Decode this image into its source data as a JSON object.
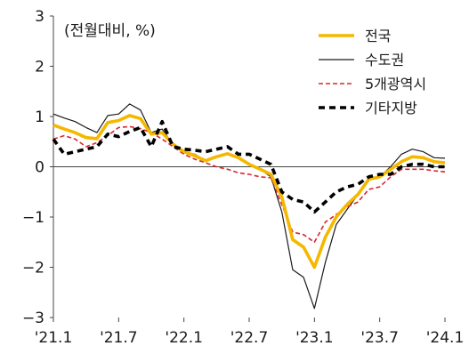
{
  "chart_data": {
    "type": "line",
    "unit_label": "(전월대비, %)",
    "ylim": [
      -3,
      3
    ],
    "y_ticks": [
      3,
      2,
      1,
      0,
      -1,
      -2,
      -3
    ],
    "x_ticks": [
      "'21.1",
      "'21.7",
      "'22.1",
      "'22.7",
      "'23.1",
      "'23.7",
      "'24.1"
    ],
    "x_start": "2021-01",
    "legend_position": "top-right",
    "grid": false,
    "series": [
      {
        "name": "전국",
        "color": "#F5B800",
        "style": "solid-thick",
        "values": [
          0.83,
          0.75,
          0.68,
          0.58,
          0.56,
          0.88,
          0.92,
          1.02,
          0.96,
          0.65,
          0.68,
          0.45,
          0.3,
          0.22,
          0.12,
          0.2,
          0.26,
          0.18,
          0.05,
          -0.05,
          -0.15,
          -0.6,
          -1.45,
          -1.6,
          -2.0,
          -1.4,
          -1.0,
          -0.75,
          -0.55,
          -0.25,
          -0.2,
          -0.05,
          0.1,
          0.2,
          0.18,
          0.1,
          0.08
        ]
      },
      {
        "name": "수도권",
        "color": "#1a1a1a",
        "style": "solid-thin",
        "values": [
          1.05,
          0.97,
          0.9,
          0.78,
          0.68,
          1.02,
          1.05,
          1.25,
          1.13,
          0.68,
          0.75,
          0.45,
          0.3,
          0.25,
          0.12,
          0.2,
          0.25,
          0.2,
          0.05,
          -0.05,
          -0.2,
          -0.9,
          -2.05,
          -2.2,
          -2.82,
          -1.9,
          -1.15,
          -0.85,
          -0.55,
          -0.25,
          -0.2,
          0.0,
          0.25,
          0.35,
          0.3,
          0.18,
          0.17
        ]
      },
      {
        "name": "5개광역시",
        "color": "#D9262B",
        "style": "dashed-thin",
        "values": [
          0.55,
          0.62,
          0.55,
          0.4,
          0.48,
          0.62,
          0.78,
          0.8,
          0.76,
          0.68,
          0.55,
          0.4,
          0.25,
          0.15,
          0.08,
          0.0,
          -0.05,
          -0.12,
          -0.15,
          -0.2,
          -0.22,
          -0.75,
          -1.3,
          -1.35,
          -1.5,
          -1.1,
          -0.95,
          -0.8,
          -0.7,
          -0.45,
          -0.4,
          -0.2,
          -0.05,
          -0.05,
          -0.05,
          -0.08,
          -0.1
        ]
      },
      {
        "name": "기타지방",
        "color": "#000000",
        "style": "dashed-thick",
        "values": [
          0.55,
          0.25,
          0.3,
          0.35,
          0.4,
          0.65,
          0.6,
          0.7,
          0.78,
          0.4,
          0.9,
          0.4,
          0.35,
          0.33,
          0.3,
          0.35,
          0.4,
          0.25,
          0.25,
          0.15,
          0.05,
          -0.5,
          -0.65,
          -0.7,
          -0.9,
          -0.7,
          -0.5,
          -0.4,
          -0.35,
          -0.2,
          -0.15,
          -0.15,
          0.0,
          0.05,
          0.05,
          0.0,
          0.0
        ]
      }
    ]
  }
}
